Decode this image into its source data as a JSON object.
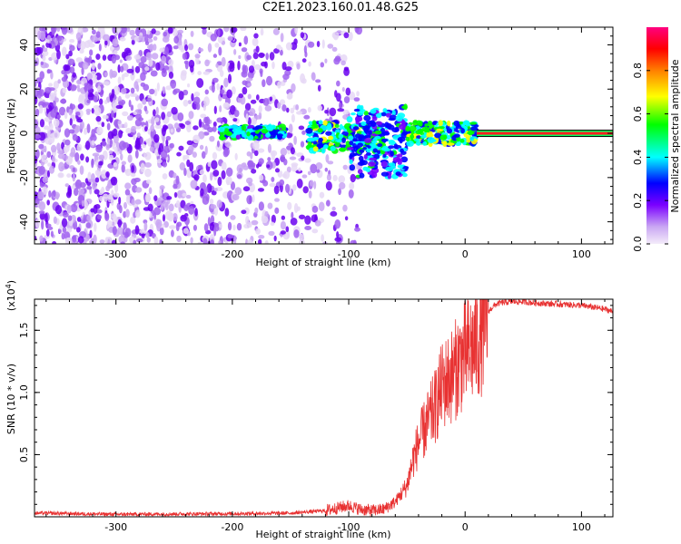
{
  "title": "C2E1.2023.160.01.48.G25",
  "chart_data": [
    {
      "type": "heatmap",
      "xlabel": "Height of straight line (km)",
      "ylabel": "Frequency (Hz)",
      "xlim": [
        -370,
        127
      ],
      "ylim": [
        -50,
        48
      ],
      "xticks": [
        -300,
        -200,
        -100,
        0,
        100
      ],
      "yticks": [
        -40,
        -20,
        0,
        20,
        40
      ],
      "colorbar": {
        "label": "Normalized spectral amplitude",
        "range": [
          0,
          1
        ],
        "ticks": [
          "0.0",
          "0.2",
          "0.4",
          "0.6",
          "0.8"
        ],
        "colors": [
          "#f4ecfa",
          "#7a00ff",
          "#0000ff",
          "#00ffff",
          "#00ff00",
          "#ffff00",
          "#ff8000",
          "#ff0000",
          "#ff0080"
        ]
      },
      "features": [
        {
          "name": "noise",
          "x": [
            -370,
            -90
          ],
          "y": [
            -50,
            48
          ],
          "amplitude": 0.1
        },
        {
          "name": "band",
          "x": [
            -210,
            -155
          ],
          "y": [
            -2,
            3
          ],
          "amplitude": 0.45
        },
        {
          "name": "band",
          "x": [
            -135,
            -70
          ],
          "y": [
            -8,
            5
          ],
          "amplitude": 0.5
        },
        {
          "name": "band",
          "x": [
            -100,
            -50
          ],
          "y": [
            -20,
            12
          ],
          "amplitude": 0.4
        },
        {
          "name": "band",
          "x": [
            -50,
            10
          ],
          "y": [
            -5,
            5
          ],
          "amplitude": 0.55
        },
        {
          "name": "carrier",
          "x": [
            10,
            127
          ],
          "y": [
            0,
            0
          ],
          "amplitude": 0.9
        }
      ]
    },
    {
      "type": "line",
      "xlabel": "Height of straight line (km)",
      "ylabel": "SNR (10 * v/v)",
      "y_multiplier": "(x10",
      "y_multiplier_exp": "4",
      "xlim": [
        -370,
        127
      ],
      "ylim": [
        0,
        17500
      ],
      "xticks": [
        -300,
        -200,
        -100,
        0,
        100
      ],
      "yticks": [
        5000,
        10000,
        15000
      ],
      "ytick_labels": [
        "0.5",
        "1.0",
        "1.5"
      ],
      "color": "#e83232",
      "series": [
        {
          "x": [
            -370,
            -300,
            -200,
            -150,
            -120,
            -100,
            -90,
            -80,
            -70,
            -60,
            -50,
            -45,
            -40,
            -35,
            -30,
            -25,
            -20,
            -15,
            -10,
            -5,
            0,
            5,
            10,
            15,
            20,
            25,
            30,
            40,
            50,
            60,
            80,
            100,
            120,
            127
          ],
          "y": [
            300,
            200,
            250,
            300,
            500,
            900,
            600,
            500,
            600,
            1200,
            2500,
            4500,
            6000,
            7000,
            8000,
            9000,
            10500,
            11000,
            11500,
            12500,
            13000,
            13500,
            14000,
            15000,
            16500,
            17000,
            17200,
            17300,
            17300,
            17200,
            17100,
            17000,
            16700,
            16500
          ]
        }
      ]
    }
  ]
}
